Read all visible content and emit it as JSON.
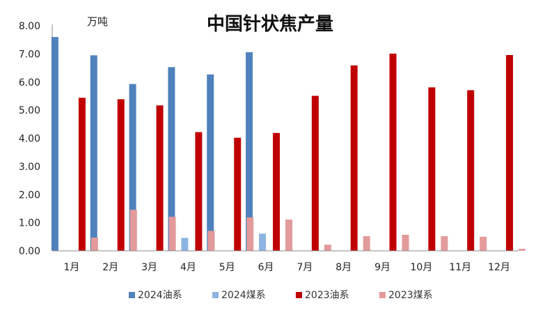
{
  "chart_data": {
    "type": "bar",
    "title": "中国针状焦产量",
    "unit": "万吨",
    "categories": [
      "1月",
      "2月",
      "3月",
      "4月",
      "5月",
      "6月",
      "7月",
      "8月",
      "9月",
      "10月",
      "11月",
      "12月"
    ],
    "ylim": [
      0,
      8
    ],
    "yticks": [
      "0.00",
      "1.00",
      "2.00",
      "3.00",
      "4.00",
      "5.00",
      "6.00",
      "7.00",
      "8.00"
    ],
    "grid": false,
    "legend_position": "bottom",
    "series": [
      {
        "name": "2024油系",
        "color": "#4F81BD",
        "values": [
          7.6,
          6.95,
          5.93,
          6.53,
          6.27,
          7.06,
          null,
          null,
          null,
          null,
          null,
          null
        ]
      },
      {
        "name": "2024煤系",
        "color": "#8DB4E2",
        "values": [
          null,
          null,
          null,
          0.46,
          null,
          0.61,
          null,
          null,
          null,
          null,
          null,
          null
        ]
      },
      {
        "name": "2023油系",
        "color": "#C00000",
        "values": [
          5.44,
          5.39,
          5.17,
          4.22,
          4.02,
          4.19,
          5.51,
          6.59,
          7.01,
          5.81,
          5.71,
          6.96
        ]
      },
      {
        "name": "2023煤系",
        "color": "#E39A9A",
        "values": [
          0.47,
          1.46,
          1.21,
          0.71,
          1.19,
          1.11,
          0.22,
          0.52,
          0.57,
          0.52,
          0.5,
          0.07
        ]
      }
    ]
  }
}
